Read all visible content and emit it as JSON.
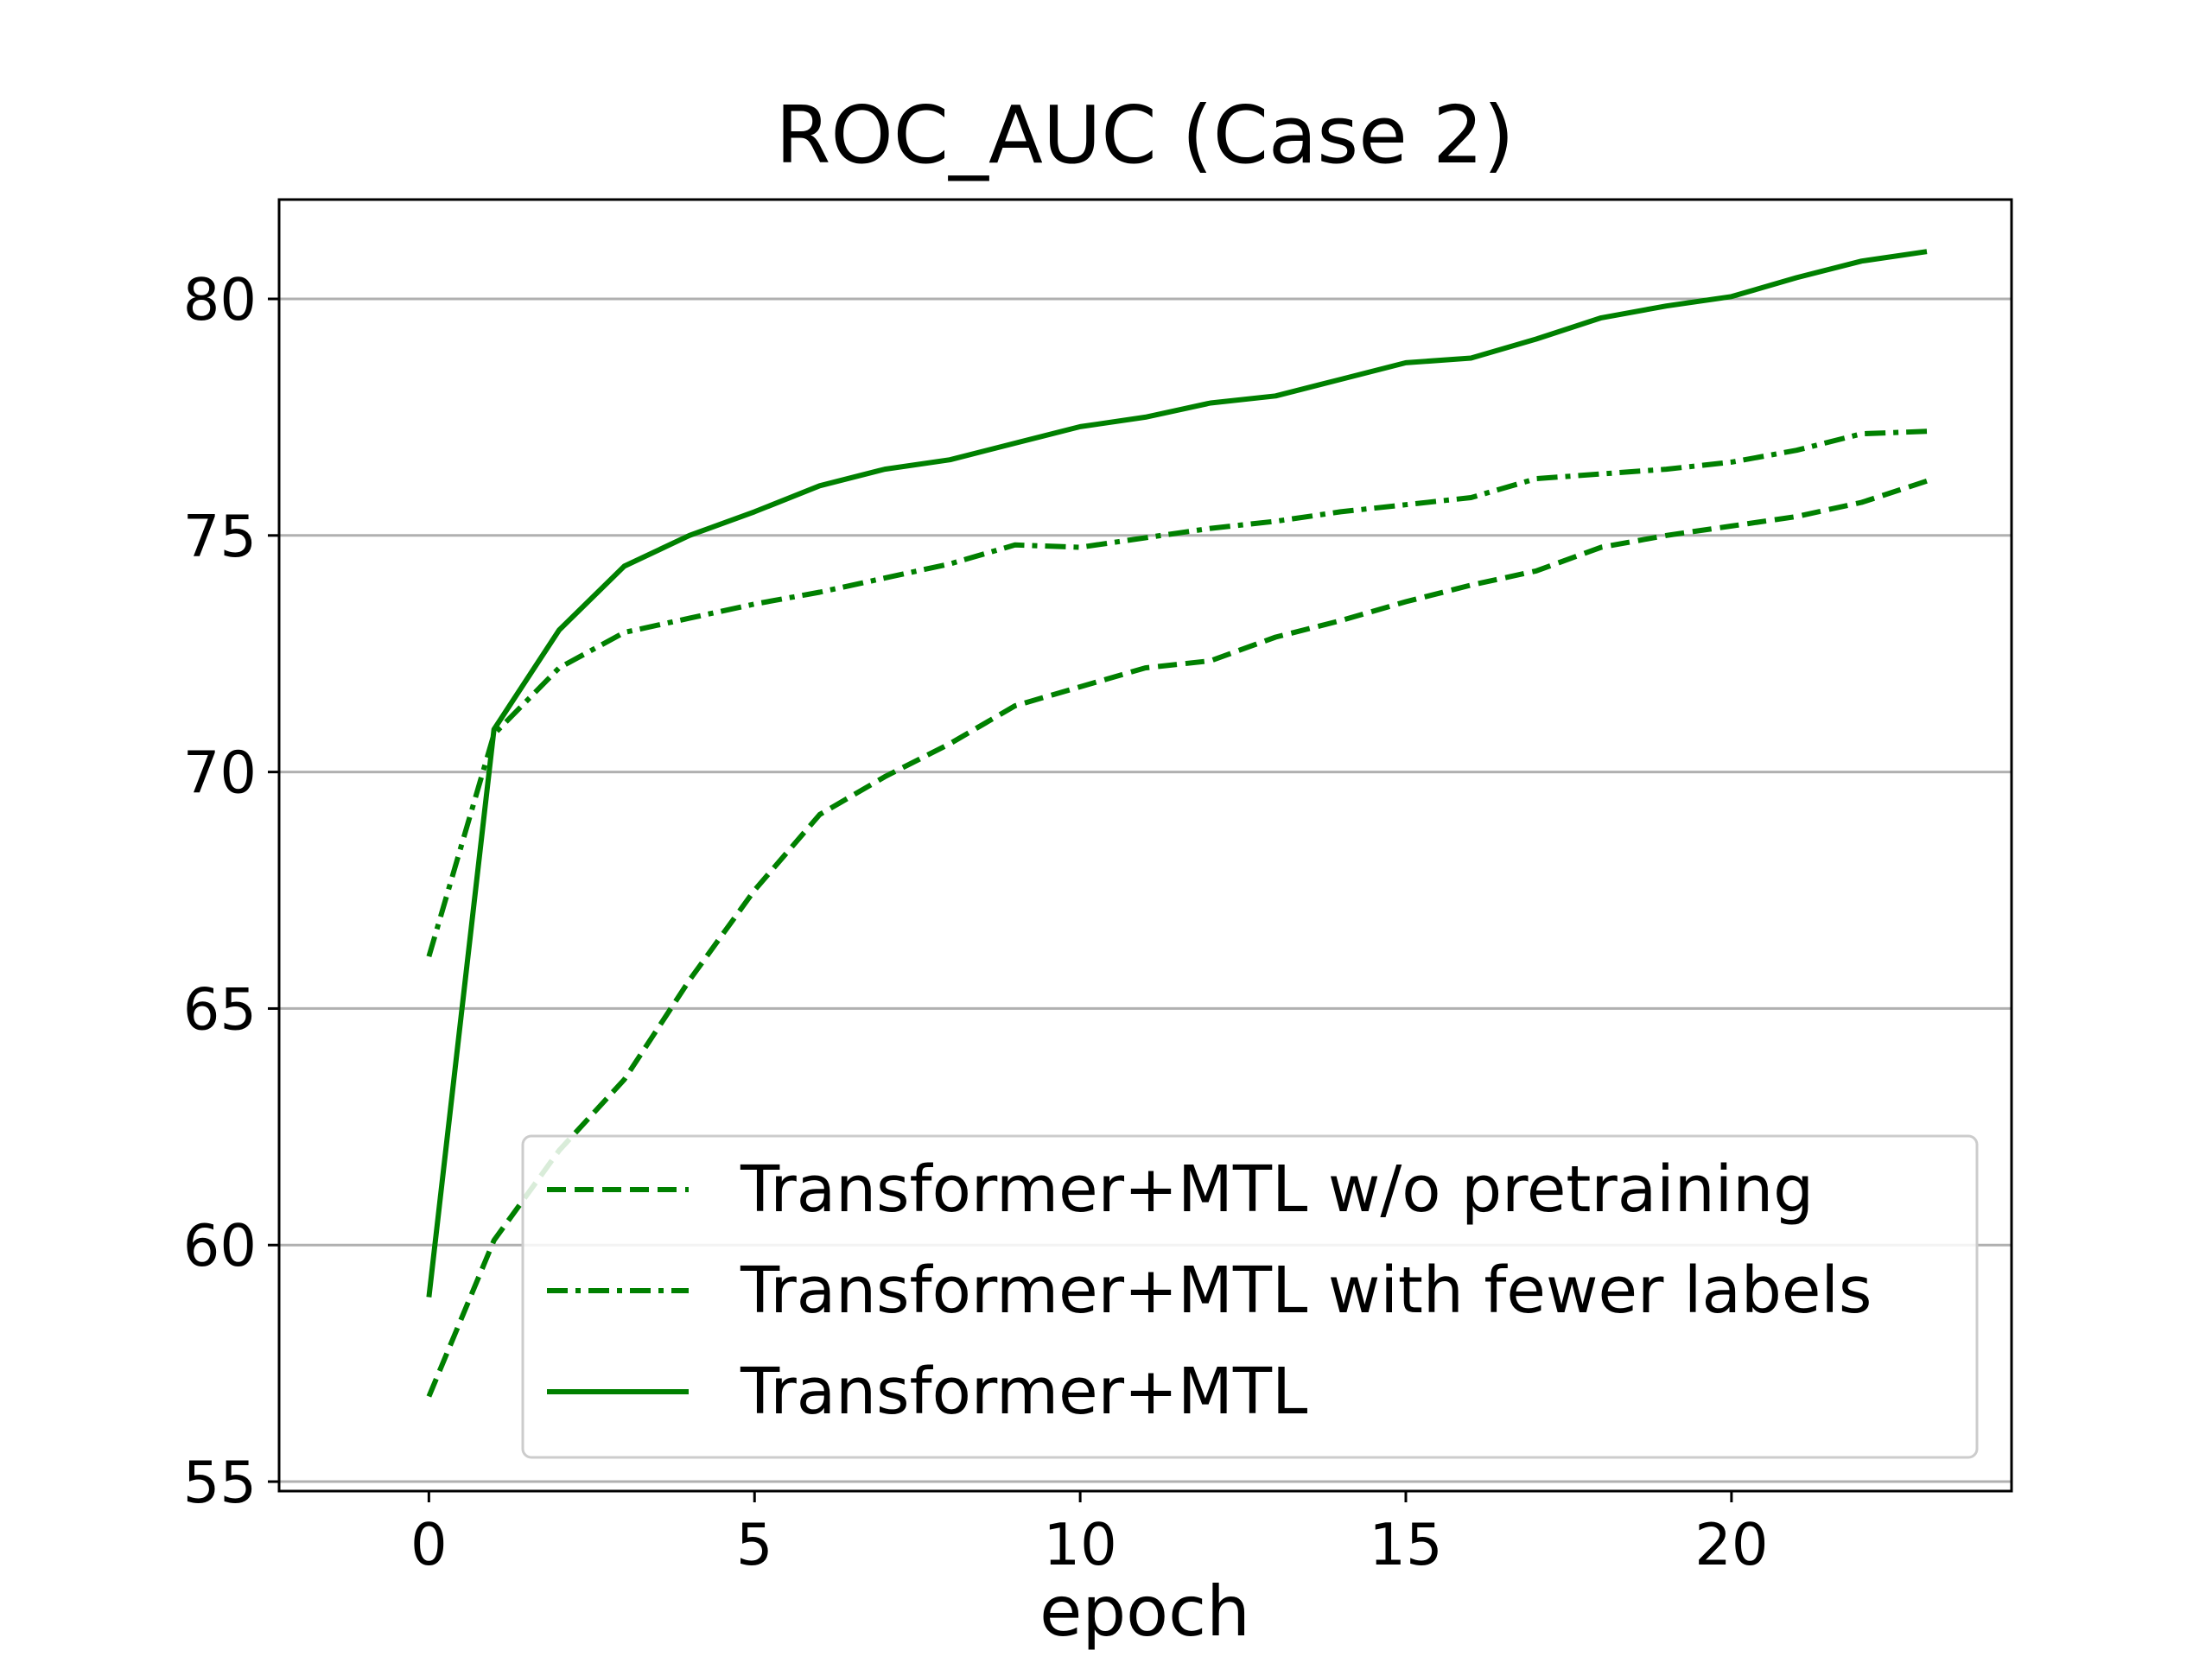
{
  "chart_data": {
    "type": "line",
    "title": "ROC_AUC (Case 2)",
    "xlabel": "epoch",
    "ylabel": "",
    "xlim": [
      -2.3,
      24.3
    ],
    "ylim": [
      54.8,
      82.1
    ],
    "xticks": [
      0,
      5,
      10,
      15,
      20
    ],
    "yticks": [
      55,
      60,
      65,
      70,
      75,
      80
    ],
    "grid": "horizontal",
    "legend_position": "lower right",
    "line_color": "#008000",
    "x": [
      0,
      1,
      2,
      3,
      4,
      5,
      6,
      7,
      8,
      9,
      10,
      11,
      12,
      13,
      14,
      15,
      16,
      17,
      18,
      19,
      20,
      21,
      22,
      23
    ],
    "series": [
      {
        "name": "Transformer+MTL w/o pretraining",
        "dash": "dashed",
        "values": [
          56.8,
          60.1,
          62.0,
          63.5,
          65.6,
          67.5,
          69.1,
          69.9,
          70.6,
          71.4,
          71.8,
          72.2,
          72.35,
          72.85,
          73.2,
          73.6,
          73.95,
          74.25,
          74.75,
          75.0,
          75.2,
          75.4,
          75.7,
          76.15
        ]
      },
      {
        "name": "Transformer+MTL with fewer labels",
        "dash": "dashdot",
        "values": [
          66.1,
          70.8,
          72.2,
          72.95,
          73.25,
          73.55,
          73.8,
          74.1,
          74.4,
          74.8,
          74.75,
          74.95,
          75.15,
          75.3,
          75.5,
          75.65,
          75.8,
          76.2,
          76.3,
          76.4,
          76.55,
          76.8,
          77.15,
          77.2
        ]
      },
      {
        "name": "Transformer+MTL",
        "dash": "solid",
        "values": [
          58.9,
          70.9,
          73.0,
          74.35,
          75.0,
          75.5,
          76.05,
          76.4,
          76.6,
          76.95,
          77.3,
          77.5,
          77.8,
          77.95,
          78.3,
          78.65,
          78.75,
          79.15,
          79.6,
          79.85,
          80.05,
          80.45,
          80.8,
          81.0
        ]
      }
    ]
  }
}
